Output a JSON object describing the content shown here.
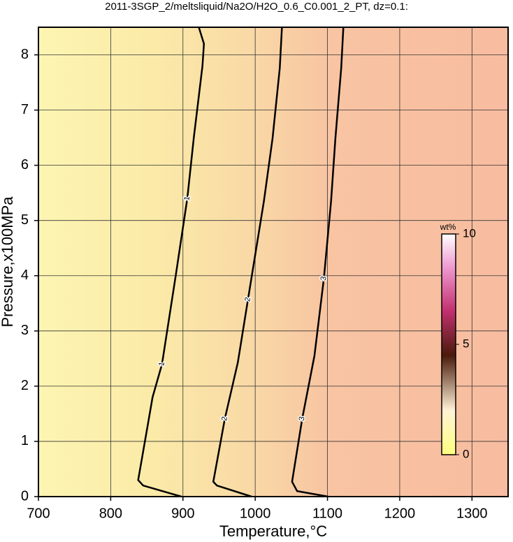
{
  "chart_data": {
    "type": "contour",
    "title": "2011-3SGP_2/meltsliquid/Na2O/H2O_0.6_C0.001_2_PT, dz=0.1:",
    "xlabel": "Temperature,°C",
    "ylabel": "Pressure,x100MPa",
    "xlim": [
      700,
      1350
    ],
    "ylim": [
      0,
      8.5
    ],
    "xticks": [
      700,
      800,
      900,
      1000,
      1100,
      1200,
      1300
    ],
    "yticks": [
      0,
      1,
      2,
      3,
      4,
      5,
      6,
      7,
      8
    ],
    "grid": true,
    "contours": [
      {
        "label": "1",
        "x": [
          922,
          929,
          927,
          915,
          906,
          890,
          871,
          858,
          850,
          838,
          845,
          898
        ],
        "y": [
          8.5,
          8.2,
          7.8,
          6.5,
          5.4,
          4,
          2.4,
          1.8,
          1.2,
          0.3,
          0.2,
          0
        ]
      },
      {
        "label": "2",
        "x": [
          1037,
          1034,
          1024,
          1012,
          990,
          976,
          958,
          942,
          947,
          995
        ],
        "y": [
          8.5,
          7.76,
          6.49,
          5.35,
          3.57,
          2.43,
          1.41,
          0.27,
          0.2,
          0
        ]
      },
      {
        "label": "3",
        "x": [
          1122,
          1119,
          1111,
          1105,
          1095,
          1082,
          1065,
          1051,
          1058,
          1101
        ],
        "y": [
          8.5,
          7.76,
          6.49,
          5.35,
          3.95,
          2.55,
          1.41,
          0.27,
          0.1,
          0
        ]
      }
    ],
    "colorbar": {
      "label": "wt%",
      "lim": [
        0,
        10
      ],
      "ticks": [
        0,
        5,
        10
      ]
    }
  }
}
